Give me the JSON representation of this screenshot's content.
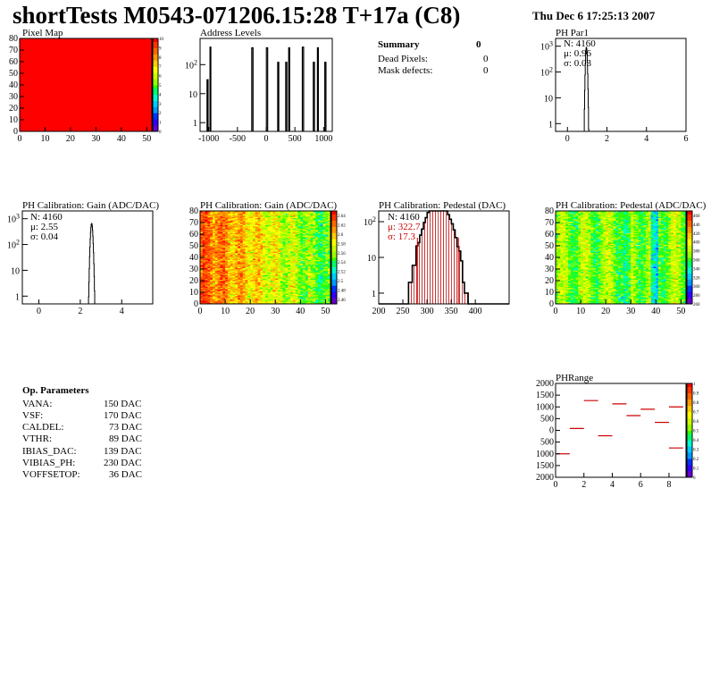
{
  "header": {
    "title": "shortTests M0543-071206.15:28 T+17a (C8)",
    "date": "Thu Dec  6 17:25:13 2007"
  },
  "summary": {
    "title": "Summary",
    "total": "0",
    "rows": [
      {
        "label": "Dead Pixels:",
        "value": "0"
      },
      {
        "label": "Mask defects:",
        "value": "0"
      }
    ]
  },
  "op_parameters": {
    "title": "Op. Parameters",
    "rows": [
      {
        "name": "VANA:",
        "value": "150 DAC"
      },
      {
        "name": "VSF:",
        "value": "170 DAC"
      },
      {
        "name": "CALDEL:",
        "value": "73 DAC"
      },
      {
        "name": "VTHR:",
        "value": "89 DAC"
      },
      {
        "name": "IBIAS_DAC:",
        "value": "139 DAC"
      },
      {
        "name": "VIBIAS_PH:",
        "value": "230 DAC"
      },
      {
        "name": "VOFFSETOP:",
        "value": "36 DAC"
      }
    ]
  },
  "colors": {
    "red_fill": "#ff0000",
    "stat_red": "#cc0000",
    "palette": [
      "#6600cc",
      "#3300ff",
      "#0033ff",
      "#0099ff",
      "#00ccff",
      "#00ffcc",
      "#00ff66",
      "#33ff00",
      "#99ff00",
      "#ccff00",
      "#ffff00",
      "#ffcc00",
      "#ff9900",
      "#ff6600",
      "#ff3300",
      "#ff0000"
    ]
  },
  "chart_data": [
    {
      "id": "pixel-map",
      "type": "heatmap",
      "title": "Pixel Map",
      "xlim": [
        0,
        52
      ],
      "ylim": [
        0,
        80
      ],
      "xticks": [
        "0",
        "10",
        "20",
        "30",
        "40",
        "50"
      ],
      "yticks": [
        "0",
        "10",
        "20",
        "30",
        "40",
        "50",
        "60",
        "70",
        "80"
      ],
      "uniform_value": 10,
      "zlim": [
        0,
        10
      ],
      "zticks": [
        "0",
        "1",
        "2",
        "3",
        "4",
        "5",
        "6",
        "7",
        "8",
        "9",
        "10"
      ]
    },
    {
      "id": "address-levels",
      "type": "bar",
      "title": "Address Levels",
      "log_y": true,
      "xlim": [
        -1150,
        1150
      ],
      "ylim": [
        0.5,
        800
      ],
      "xticks": [
        "-1000",
        "-500",
        "0",
        "500",
        "1000"
      ],
      "yticks": [
        "1",
        "10",
        "10^2"
      ],
      "peaks": [
        {
          "x": -1020,
          "height": 30,
          "width": 18
        },
        {
          "x": -970,
          "height": 400,
          "width": 14
        },
        {
          "x": -240,
          "height": 380,
          "width": 22
        },
        {
          "x": 15,
          "height": 380,
          "width": 22
        },
        {
          "x": 210,
          "height": 120,
          "width": 18
        },
        {
          "x": 350,
          "height": 120,
          "width": 20
        },
        {
          "x": 400,
          "height": 380,
          "width": 16
        },
        {
          "x": 640,
          "height": 400,
          "width": 22
        },
        {
          "x": 830,
          "height": 120,
          "width": 20
        },
        {
          "x": 900,
          "height": 380,
          "width": 16
        },
        {
          "x": 1030,
          "height": 120,
          "width": 20
        }
      ]
    },
    {
      "id": "ph-par1",
      "type": "bar",
      "title": "PH Par1",
      "log_y": true,
      "xlim": [
        -0.6,
        6
      ],
      "ylim": [
        0.5,
        2000
      ],
      "xticks": [
        "0",
        "2",
        "4",
        "6"
      ],
      "yticks": [
        "1",
        "10",
        "10^2",
        "10^3"
      ],
      "stats": {
        "n": "N: 4160",
        "mean": "μ: 0.96",
        "sigma": "σ: 0.03"
      },
      "gaussian": {
        "mean": 0.96,
        "sigma": 0.03,
        "n": 4160
      }
    },
    {
      "id": "ph-gain-1d",
      "type": "bar",
      "title": "PH Calibration: Gain (ADC/DAC)",
      "log_y": true,
      "xlim": [
        -0.8,
        5.5
      ],
      "ylim": [
        0.5,
        2000
      ],
      "xticks": [
        "0",
        "2",
        "4"
      ],
      "yticks": [
        "1",
        "10",
        "10^2",
        "10^3"
      ],
      "stats": {
        "n": "N: 4160",
        "mean": "μ: 2.55",
        "sigma": "σ: 0.04"
      },
      "gaussian": {
        "mean": 2.55,
        "sigma": 0.04,
        "n": 4160
      }
    },
    {
      "id": "ph-gain-map",
      "type": "heatmap",
      "title": "PH Calibration: Gain (ADC/DAC)",
      "xlim": [
        0,
        52
      ],
      "ylim": [
        0,
        80
      ],
      "xticks": [
        "0",
        "10",
        "20",
        "30",
        "40",
        "50"
      ],
      "yticks": [
        "0",
        "10",
        "20",
        "30",
        "40",
        "50",
        "60",
        "70",
        "80"
      ],
      "zlim": [
        2.45,
        2.65
      ],
      "zticks": [
        "2.46",
        "2.48",
        "2.5",
        "2.52",
        "2.54",
        "2.56",
        "2.58",
        "2.6",
        "2.62",
        "2.64"
      ]
    },
    {
      "id": "ph-pedestal-1d",
      "type": "bar",
      "title": "PH Calibration: Pedestal (DAC)",
      "log_y": true,
      "xlim": [
        200,
        470
      ],
      "ylim": [
        0.5,
        200
      ],
      "xticks": [
        "200",
        "250",
        "300",
        "350",
        "400"
      ],
      "yticks": [
        "1",
        "10",
        "10^2"
      ],
      "stats": {
        "n": "N: 4160",
        "mean": "μ: 322.7",
        "sigma": "σ: 17.3"
      },
      "gaussian": {
        "mean": 322.7,
        "sigma": 17.3,
        "n": 4160
      },
      "markers": [
        280,
        365
      ]
    },
    {
      "id": "ph-pedestal-map",
      "type": "heatmap",
      "title": "PH Calibration: Pedestal (ADC/DAC)",
      "xlim": [
        0,
        52
      ],
      "ylim": [
        0,
        80
      ],
      "xticks": [
        "0",
        "10",
        "20",
        "30",
        "40",
        "50"
      ],
      "yticks": [
        "0",
        "10",
        "20",
        "30",
        "40",
        "50",
        "60",
        "70",
        "80"
      ],
      "zlim": [
        260,
        470
      ],
      "zticks": [
        "260",
        "280",
        "300",
        "320",
        "340",
        "360",
        "380",
        "400",
        "420",
        "440",
        "460"
      ]
    },
    {
      "id": "ph-range",
      "type": "scatter",
      "title": "PHRange",
      "xlim": [
        0,
        9.2
      ],
      "ylim": [
        -2000,
        2000
      ],
      "xticks": [
        "0",
        "2",
        "4",
        "6",
        "8"
      ],
      "yticks": [
        "-2000",
        "-1500",
        "-1000",
        "-500",
        "0",
        "500",
        "1000",
        "1500",
        "2000"
      ],
      "zlim": [
        0,
        1
      ],
      "zticks": [
        "0",
        "0.1",
        "0.2",
        "0.3",
        "0.4",
        "0.5",
        "0.6",
        "0.7",
        "0.8",
        "0.9",
        "1"
      ],
      "segments": [
        {
          "x": 0.5,
          "y": -1000
        },
        {
          "x": 1.5,
          "y": 80
        },
        {
          "x": 2.5,
          "y": 1270
        },
        {
          "x": 3.5,
          "y": -230
        },
        {
          "x": 4.5,
          "y": 1130
        },
        {
          "x": 5.5,
          "y": 630
        },
        {
          "x": 6.5,
          "y": 900
        },
        {
          "x": 7.5,
          "y": 340
        },
        {
          "x": 8.5,
          "y": 1000
        },
        {
          "x": 8.5,
          "y": -750
        }
      ]
    }
  ]
}
